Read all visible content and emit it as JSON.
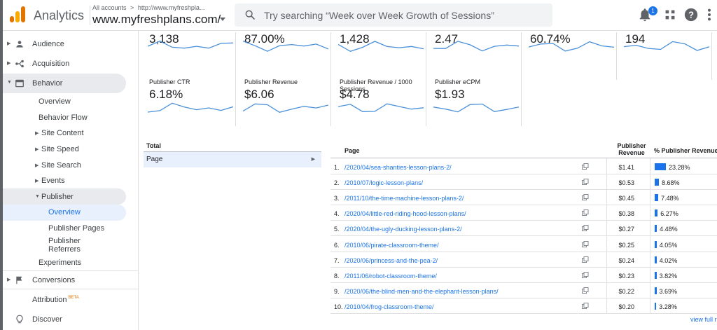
{
  "header": {
    "app_title": "Analytics",
    "breadcrumb_all": "All accounts",
    "breadcrumb_sep": ">",
    "breadcrumb_property": "http://www.myfreshpla...",
    "account_name": "www.myfreshplans.com/",
    "search_placeholder": "Try searching “Week over Week Growth of Sessions”",
    "notifications_count": "1",
    "icons": [
      "bell-icon",
      "apps-grid-icon",
      "help-icon",
      "more-vert-icon"
    ]
  },
  "sidebar": {
    "audience": "Audience",
    "acquisition": "Acquisition",
    "behavior": "Behavior",
    "behavior_items": {
      "overview": "Overview",
      "behavior_flow": "Behavior Flow",
      "site_content": "Site Content",
      "site_speed": "Site Speed",
      "site_search": "Site Search",
      "events": "Events",
      "publisher": "Publisher",
      "publisher_overview": "Overview",
      "publisher_pages": "Publisher Pages",
      "publisher_referrers_1": "Publisher",
      "publisher_referrers_2": "Referrers",
      "experiments": "Experiments"
    },
    "conversions": "Conversions",
    "attribution": "Attribution",
    "attribution_badge": "BETA",
    "discover": "Discover"
  },
  "metrics_row1": [
    {
      "value": "3,138"
    },
    {
      "value": "87.00%"
    },
    {
      "value": "1,428"
    },
    {
      "value": "2.47"
    },
    {
      "value": "60.74%"
    },
    {
      "value": "194"
    }
  ],
  "metrics_row2": [
    {
      "label": "Publisher CTR",
      "value": "6.18%"
    },
    {
      "label": "Publisher Revenue",
      "value": "$6.06"
    },
    {
      "label": "Publisher Revenue / 1000 Sessions",
      "value": "$4.78"
    },
    {
      "label": "Publisher eCPM",
      "value": "$1.93"
    }
  ],
  "total_table": {
    "header": "Total",
    "row": "Page"
  },
  "page_table": {
    "col_page": "Page",
    "col_revenue_1": "Publisher",
    "col_revenue_2": "Revenue",
    "col_pct": "% Publisher Revenue",
    "rows": [
      {
        "num": "1.",
        "page": "/2020/04/sea-shanties-lesson-plans-2/",
        "revenue": "$1.41",
        "pct": "23.28%",
        "share": 23.28
      },
      {
        "num": "2.",
        "page": "/2010/07/logic-lesson-plans/",
        "revenue": "$0.53",
        "pct": "8.68%",
        "share": 8.68
      },
      {
        "num": "3.",
        "page": "/2011/10/the-time-machine-lesson-plans-2/",
        "revenue": "$0.45",
        "pct": "7.48%",
        "share": 7.48
      },
      {
        "num": "4.",
        "page": "/2020/04/little-red-riding-hood-lesson-plans/",
        "revenue": "$0.38",
        "pct": "6.27%",
        "share": 6.27
      },
      {
        "num": "5.",
        "page": "/2020/04/the-ugly-ducking-lesson-plans-2/",
        "revenue": "$0.27",
        "pct": "4.48%",
        "share": 4.48
      },
      {
        "num": "6.",
        "page": "/2010/06/pirate-classroom-theme/",
        "revenue": "$0.25",
        "pct": "4.05%",
        "share": 4.05
      },
      {
        "num": "7.",
        "page": "/2020/06/princess-and-the-pea-2/",
        "revenue": "$0.24",
        "pct": "4.02%",
        "share": 4.02
      },
      {
        "num": "8.",
        "page": "/2011/06/robot-classroom-theme/",
        "revenue": "$0.23",
        "pct": "3.82%",
        "share": 3.82
      },
      {
        "num": "9.",
        "page": "/2020/06/the-blind-men-and-the-elephant-lesson-plans/",
        "revenue": "$0.22",
        "pct": "3.69%",
        "share": 3.69
      },
      {
        "num": "10.",
        "page": "/2010/04/frog-classroom-theme/",
        "revenue": "$0.20",
        "pct": "3.28%",
        "share": 3.28
      }
    ],
    "view_full": "view full r"
  },
  "colors": {
    "accent": "#1a73e8",
    "sparkline": "#4a90d9",
    "logo_orange": "#e37400",
    "logo_yellow": "#f9ab00"
  }
}
